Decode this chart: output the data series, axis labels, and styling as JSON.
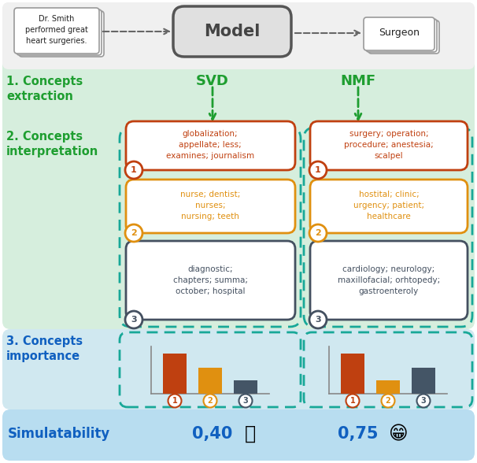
{
  "bg_color": "#ffffff",
  "section1_bg": "#d6eedd",
  "section2_bg": "#d6eedd",
  "section3_bg": "#d0e8f0",
  "simul_bg": "#b8ddf0",
  "green_text": "#1e9e30",
  "blue_text": "#1060c0",
  "orange_dark": "#c04010",
  "orange_light": "#e09010",
  "dark_gray": "#445060",
  "teal_dashed": "#18a898",
  "arrow_gray": "#666666",
  "model_box_text": "Model",
  "input_text": "Dr. Smith\nperformed great\nheart surgeries.",
  "output_text": "Surgeon",
  "sec1_label": "1. Concepts\nextraction",
  "sec2_label": "2. Concepts\ninterpretation",
  "sec3_label": "3. Concepts\nimportance",
  "simul_label": "Simulatability",
  "svd_label": "SVD",
  "nmf_label": "NMF",
  "svd_box1_text": "globalization;\nappellate; less;\nexamines; journalism",
  "svd_box2_text": "nurse; dentist;\nnurses;\nnursing; teeth",
  "svd_box3_text": "diagnostic;\nchapters; summa;\noctober; hospital",
  "nmf_box1_text": "surgery; operation;\nprocedure; anestesia;\nscalpel",
  "nmf_box2_text": "hostital; clinic;\nurgency; patient;\nhealthcare",
  "nmf_box3_text": "cardiology; neurology;\nmaxillofacial; orhtopedy;\ngastroenteroly",
  "svd_bars": [
    0.85,
    0.55,
    0.28
  ],
  "nmf_bars": [
    0.85,
    0.28,
    0.55
  ],
  "bar_colors": [
    "#bf4010",
    "#e09010",
    "#445566"
  ],
  "svd_score": "0,40",
  "nmf_score": "0,75"
}
